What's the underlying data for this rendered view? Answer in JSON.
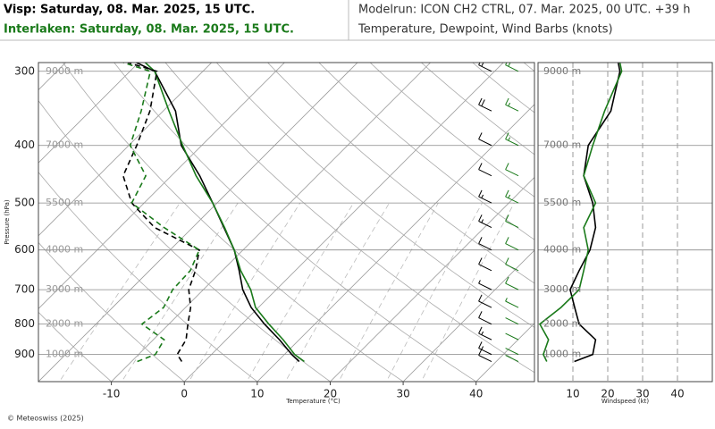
{
  "header": {
    "station1": "Visp: Saturday, 08. Mar. 2025, 15 UTC.",
    "station2": "Interlaken: Saturday, 08. Mar. 2025, 15 UTC.",
    "modelrun": "Modelrun: ICON CH2 CTRL, 07. Mar. 2025, 00 UTC. +39 h",
    "subtitle": "Temperature, Dewpoint, Wind Barbs (knots)"
  },
  "footer": "© Meteoswiss (2025)",
  "chart_data": [
    {
      "type": "skewt",
      "ylabel": "Pressure (hPa)",
      "xlabel": "Temperature (°C)",
      "log_y": true,
      "ylim": [
        1000,
        290
      ],
      "yticks": [
        300,
        400,
        500,
        600,
        700,
        800,
        900
      ],
      "height_labels": [
        "9000 m",
        "7000 m",
        "5500 m",
        "4000 m",
        "3000 m",
        "2000 m",
        "1000 m"
      ],
      "xlim": [
        -20,
        48
      ],
      "xticks": [
        -10,
        0,
        10,
        20,
        30,
        40
      ],
      "pressure": [
        925,
        900,
        850,
        800,
        750,
        700,
        650,
        600,
        550,
        500,
        450,
        400,
        350,
        300,
        290
      ],
      "series": [
        {
          "color": "#000000",
          "style": "solid",
          "values": [
            13.0,
            11.0,
            7.3,
            3.1,
            -1.0,
            -4.6,
            -7.7,
            -11.2,
            -15.7,
            -20.6,
            -26.1,
            -32.8,
            -38.3,
            -46.6,
            -50.3
          ]
        },
        {
          "color": "#1a7a1a",
          "style": "solid",
          "values": [
            13.7,
            11.4,
            7.8,
            3.7,
            -0.4,
            -3.5,
            -7.5,
            -11.2,
            -15.6,
            -20.6,
            -26.6,
            -32.6,
            -39.2,
            -46.6,
            -49.1
          ]
        },
        {
          "color": "#000000",
          "style": "dashed",
          "values": [
            -3.1,
            -4.7,
            -5.5,
            -7.4,
            -9.3,
            -12.0,
            -13.7,
            -16.0,
            -25.2,
            -31.7,
            -36.6,
            -38.9,
            -41.8,
            -46.3,
            -51.5
          ]
        },
        {
          "color": "#1a7a1a",
          "style": "dashed",
          "values": [
            -9.2,
            -7.7,
            -8.5,
            -13.7,
            -13.0,
            -14.2,
            -14.4,
            -16.0,
            -23.9,
            -31.7,
            -33.5,
            -39.8,
            -43.0,
            -47.2,
            -52.1
          ]
        }
      ]
    },
    {
      "type": "profile",
      "xlabel": "Windspeed (kt)",
      "ylim": [
        1000,
        290
      ],
      "yticks": [
        300,
        400,
        500,
        600,
        700,
        800,
        900
      ],
      "height_labels": [
        "9000 m",
        "7000 m",
        "5500 m",
        "4000 m",
        "3000 m",
        "2000 m",
        "1000 m"
      ],
      "xlim": [
        0,
        50
      ],
      "xticks": [
        10,
        20,
        30,
        40
      ],
      "pressure": [
        925,
        900,
        850,
        800,
        750,
        700,
        650,
        600,
        550,
        500,
        450,
        400,
        350,
        300,
        290
      ],
      "series": [
        {
          "color": "#000000",
          "values": [
            10.4,
            15.7,
            16.5,
            11.8,
            10.5,
            9.2,
            11.8,
            14.9,
            16.5,
            15.7,
            13.1,
            14.4,
            20.9,
            23.5,
            23.0
          ]
        },
        {
          "color": "#1a7a1a",
          "values": [
            2.5,
            1.5,
            3.0,
            0.5,
            6.6,
            11.8,
            13.1,
            14.4,
            13.1,
            16.5,
            13.1,
            15.7,
            19.1,
            24.0,
            23.5
          ]
        }
      ]
    }
  ]
}
